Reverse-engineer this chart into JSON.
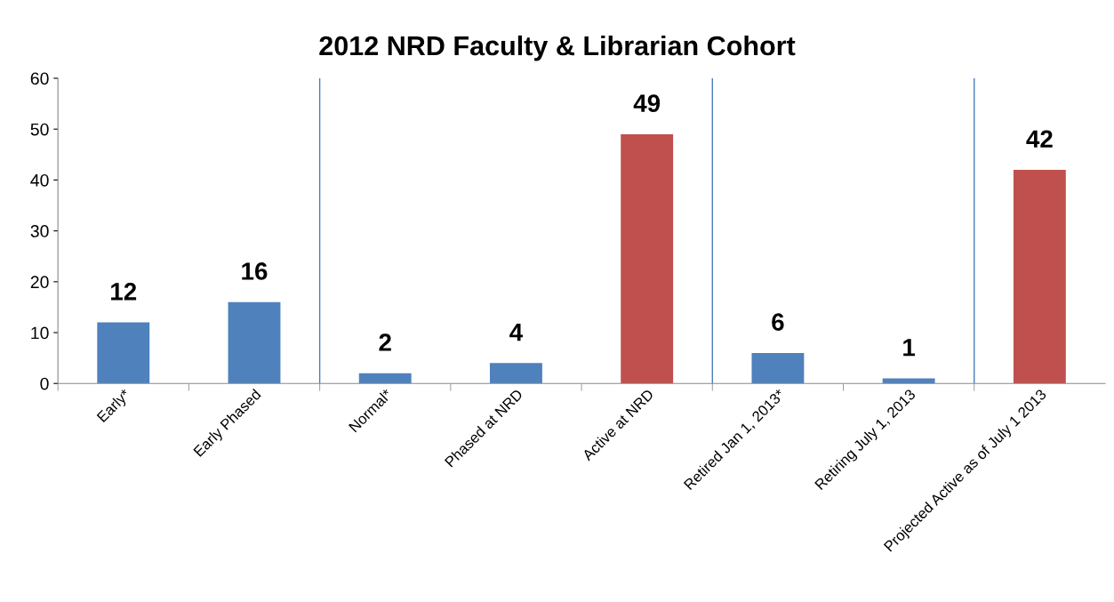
{
  "chart_data": {
    "type": "bar",
    "title": "2012 NRD Faculty & Librarian Cohort",
    "categories": [
      "Early*",
      "Early Phased",
      "Normal*",
      "Phased at NRD",
      "Active at NRD",
      "Retired Jan 1, 2013*",
      "Retiring July 1, 2013",
      "Projected Active as of July 1 2013"
    ],
    "values": [
      12,
      16,
      2,
      4,
      49,
      6,
      1,
      42
    ],
    "colors": [
      "#4f81bd",
      "#4f81bd",
      "#4f81bd",
      "#4f81bd",
      "#c0504d",
      "#4f81bd",
      "#4f81bd",
      "#c0504d"
    ],
    "data_labels": true,
    "ylim": [
      0,
      60
    ],
    "yticks": [
      0,
      10,
      20,
      30,
      40,
      50,
      60
    ],
    "grid": false,
    "legend": false
  }
}
